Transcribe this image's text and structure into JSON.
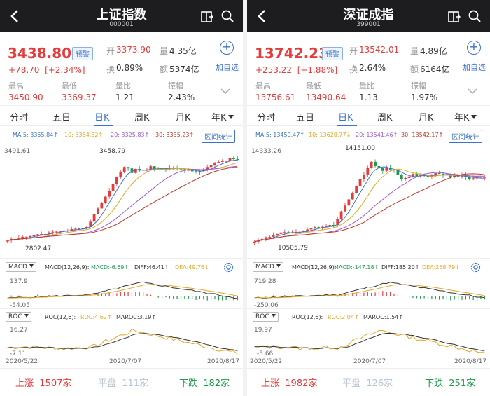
{
  "panels": [
    {
      "title": "上证指数",
      "code": "000001",
      "price": "3438.80",
      "alert_label": "预警",
      "change": "+78.70",
      "change_pct": "[+2.34%]",
      "open_label": "开",
      "open": "3373.90",
      "volume_label": "量",
      "volume": "4.35亿",
      "turnover_label": "换",
      "turnover": "0.89%",
      "amount_label": "额",
      "amount": "5374亿",
      "high_label": "最高",
      "high": "3450.90",
      "low_label": "最低",
      "low": "3369.37",
      "vol_ratio_label": "量比",
      "vol_ratio": "1.21",
      "amplitude_label": "振幅",
      "amplitude": "2.43%",
      "add_watch_label": "加自选",
      "tabs": [
        "分时",
        "五日",
        "日K",
        "周K",
        "月K",
        "年K"
      ],
      "active_tab": 2,
      "ma": {
        "ma5": "MA 5: 3355.84↑",
        "ma10": "10: 3364.82↑",
        "ma20": "20: 3325.83↑",
        "ma30": "30: 3335.23↑"
      },
      "range_label": "区间统计",
      "axis_top": "3491.61",
      "axis_bottom": "2802.47",
      "peak_label": "3458.79",
      "min_label": "2802.47",
      "macd": {
        "selector": "MACD",
        "params": "MACD(12,26,9):",
        "macd_val": "MACD:-6.69↑",
        "diff_val": "DIFF:46.41↑",
        "dea_val": "DEA:49.76↓",
        "top": "137.9",
        "bottom": "-54.05"
      },
      "roc": {
        "selector": "ROC",
        "params": "ROC(12,6):",
        "roc_val": "ROC:4.62↑",
        "maroc_val": "MAROC:3.19↑",
        "top": "16.27",
        "bottom": "-7.11"
      },
      "dates": [
        "2020/5/22",
        "2020/7/07",
        "2020/8/17"
      ],
      "rise_label": "上涨",
      "rise": "1507家",
      "flat_label": "平盘",
      "flat": "111家",
      "fall_label": "下跌",
      "fall": "182家"
    },
    {
      "title": "深证成指",
      "code": "399001",
      "price": "13742.23",
      "alert_label": "预警",
      "change": "+253.22",
      "change_pct": "[+1.88%]",
      "open_label": "开",
      "open": "13542.01",
      "volume_label": "量",
      "volume": "4.89亿",
      "turnover_label": "换",
      "turnover": "2.64%",
      "amount_label": "额",
      "amount": "6164亿",
      "high_label": "最高",
      "high": "13756.61",
      "low_label": "最低",
      "low": "13490.64",
      "vol_ratio_label": "量比",
      "vol_ratio": "1.13",
      "amplitude_label": "振幅",
      "amplitude": "1.97%",
      "add_watch_label": "加自选",
      "tabs": [
        "分时",
        "五日",
        "日K",
        "周K",
        "月K",
        "年K"
      ],
      "active_tab": 2,
      "ma": {
        "ma5": "MA 5: 13459.47↑",
        "ma10": "10: 13628.77↓",
        "ma20": "20: 13541.46↑",
        "ma30": "30: 13542.17↑"
      },
      "range_label": "区间统计",
      "axis_top": "14333.26",
      "axis_bottom": "10505.79",
      "peak_label": "14151.00",
      "min_label": "10505.79",
      "macd": {
        "selector": "MACD",
        "params": "MACD(12,26,9):",
        "macd_val": "MACD:-147.18↑",
        "diff_val": "DIFF:185.20↑",
        "dea_val": "DEA:258.79↓",
        "top": "719.28",
        "bottom": "-250.06"
      },
      "roc": {
        "selector": "ROC",
        "params": "ROC(12,6):",
        "roc_val": "ROC:2.04↑",
        "maroc_val": "MAROC:1.54↑",
        "top": "19.97",
        "bottom": "-5.66"
      },
      "dates": [
        "2020/5/22",
        "2020/7/07",
        "2020/8/17"
      ],
      "rise_label": "上涨",
      "rise": "1982家",
      "flat_label": "平盘",
      "flat": "126家",
      "fall_label": "下跌",
      "fall": "251家"
    }
  ],
  "colors": {
    "rise": "#e43b3b",
    "fall": "#1a9a4a",
    "flat": "#b8c4d4",
    "accent": "#3b73c9",
    "ma5": "#3b73c9",
    "ma10": "#e3a821",
    "ma20": "#9c59d1",
    "ma30": "#c0392b"
  },
  "icons": [
    "back-icon",
    "share-icon",
    "search-icon",
    "add-icon",
    "expand-icon",
    "settings-icon"
  ]
}
